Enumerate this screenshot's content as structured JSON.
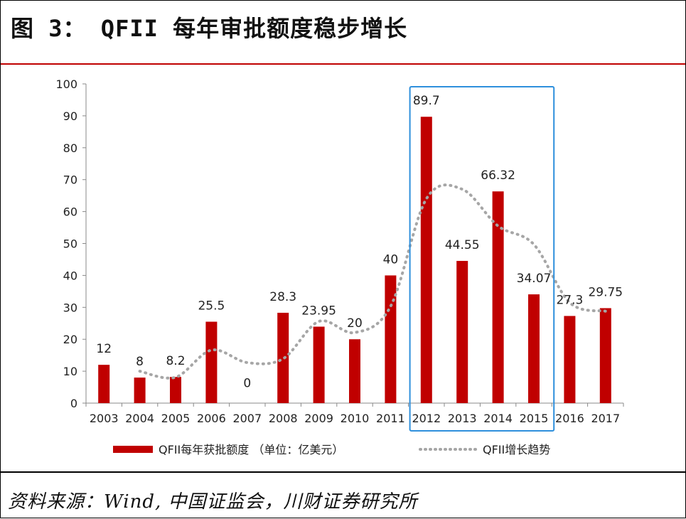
{
  "header": {
    "title": "图 3：   QFII 每年审批额度稳步增长"
  },
  "footer": {
    "source": "资料来源：Wind, 中国证监会，川财证券研究所"
  },
  "chart_data": {
    "type": "bar",
    "title": "QFII 每年审批额度稳步增长",
    "xlabel": "",
    "ylabel": "",
    "ylim": [
      0,
      100
    ],
    "yticks": [
      0,
      10,
      20,
      30,
      40,
      50,
      60,
      70,
      80,
      90,
      100
    ],
    "categories": [
      "2003",
      "2004",
      "2005",
      "2006",
      "2007",
      "2008",
      "2009",
      "2010",
      "2011",
      "2012",
      "2013",
      "2014",
      "2015",
      "2016",
      "2017"
    ],
    "series": [
      {
        "name": "QFII每年获批额度 （单位：亿美元）",
        "color": "#c00000",
        "values": [
          12,
          8,
          8.2,
          25.5,
          0,
          28.3,
          23.95,
          20,
          40,
          89.7,
          44.55,
          66.32,
          34.07,
          27.3,
          29.75
        ],
        "labels": [
          "12",
          "8",
          "8.2",
          "25.5",
          "0",
          "28.3",
          "23.95",
          "20",
          "40",
          "89.7",
          "44.55",
          "66.32",
          "34.07",
          "27.3",
          "29.75"
        ]
      },
      {
        "name": "QFII增长趋势",
        "type": "line",
        "style": "dotted",
        "color": "#a6a6a6",
        "values": [
          null,
          10,
          8.1,
          16.6,
          12.7,
          13.9,
          25.6,
          22.1,
          30.3,
          64,
          67,
          55.5,
          49.7,
          31.5,
          28.8
        ]
      }
    ],
    "highlight": {
      "from": "2012",
      "to": "2015",
      "color": "#2e8fdc"
    },
    "legend_position": "bottom"
  }
}
